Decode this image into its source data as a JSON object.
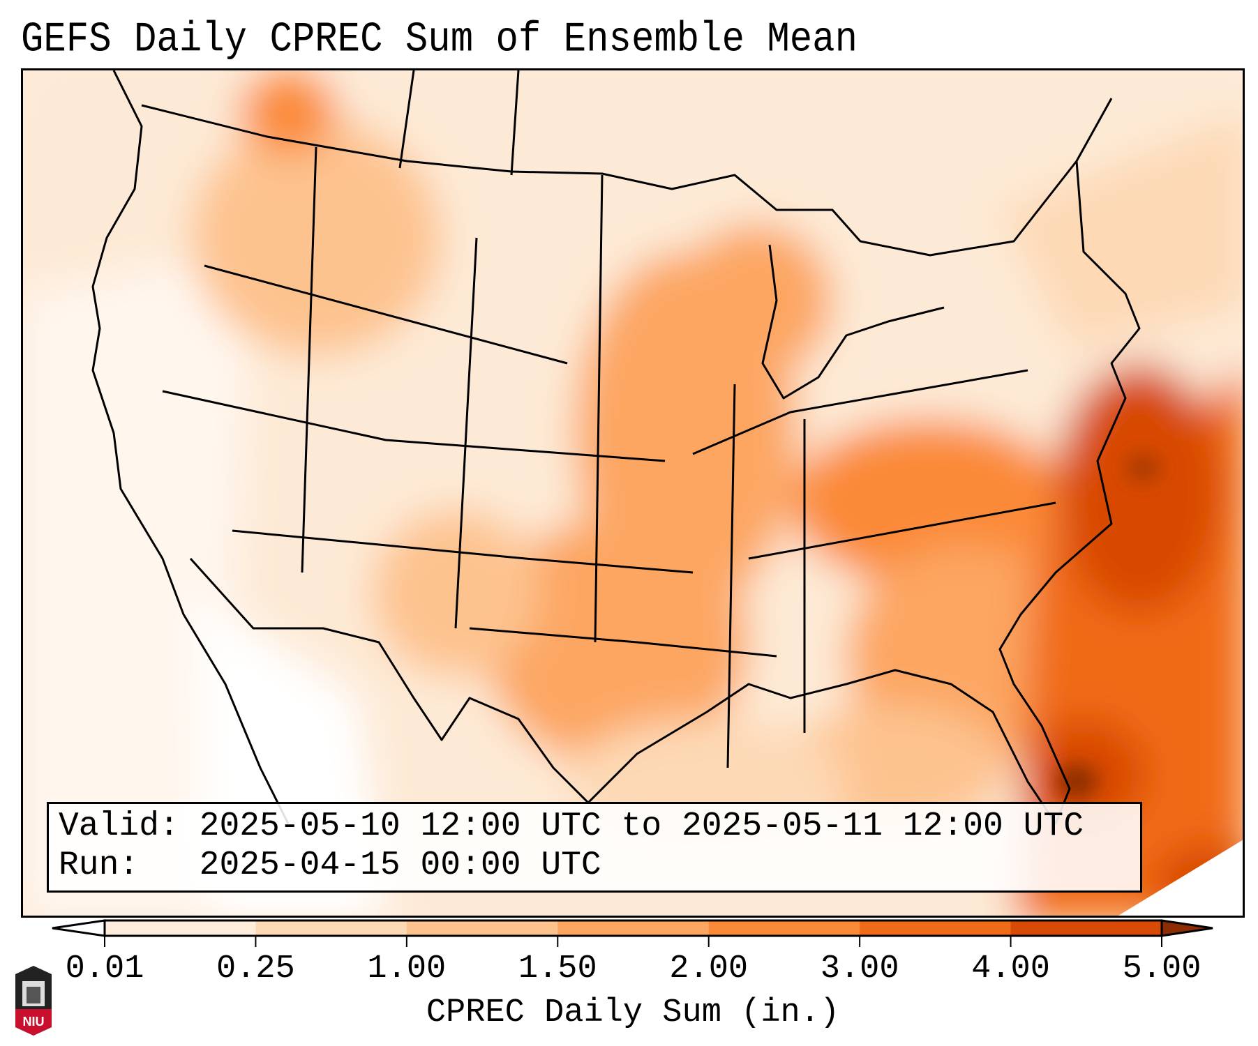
{
  "title": "GEFS Daily CPREC Sum of Ensemble Mean",
  "info": {
    "valid_line": "Valid: 2025-05-10 12:00 UTC to 2025-05-11 12:00 UTC",
    "run_line": "Run:   2025-04-15 00:00 UTC"
  },
  "logo": {
    "text": "NIU"
  },
  "chart_data": {
    "type": "heatmap",
    "title": "GEFS Daily CPREC Sum of Ensemble Mean",
    "region": "Contiguous United States",
    "variable": "CPREC Daily Sum",
    "units": "in.",
    "colorbar": {
      "label": "CPREC Daily Sum (in.)",
      "ticks": [
        "0.01",
        "0.25",
        "1.00",
        "1.50",
        "2.00",
        "3.00",
        "4.00",
        "5.00"
      ],
      "levels": [
        0.01,
        0.25,
        1.0,
        1.5,
        2.0,
        3.0,
        4.0,
        5.0
      ],
      "extend": "both",
      "colors": {
        "under": "#ffffff",
        "bins": [
          "#feeddc",
          "#fdd9b5",
          "#fdc38f",
          "#fca662",
          "#fb8a38",
          "#f06b17",
          "#d84a05"
        ],
        "over": "#8c2d04"
      }
    }
  }
}
